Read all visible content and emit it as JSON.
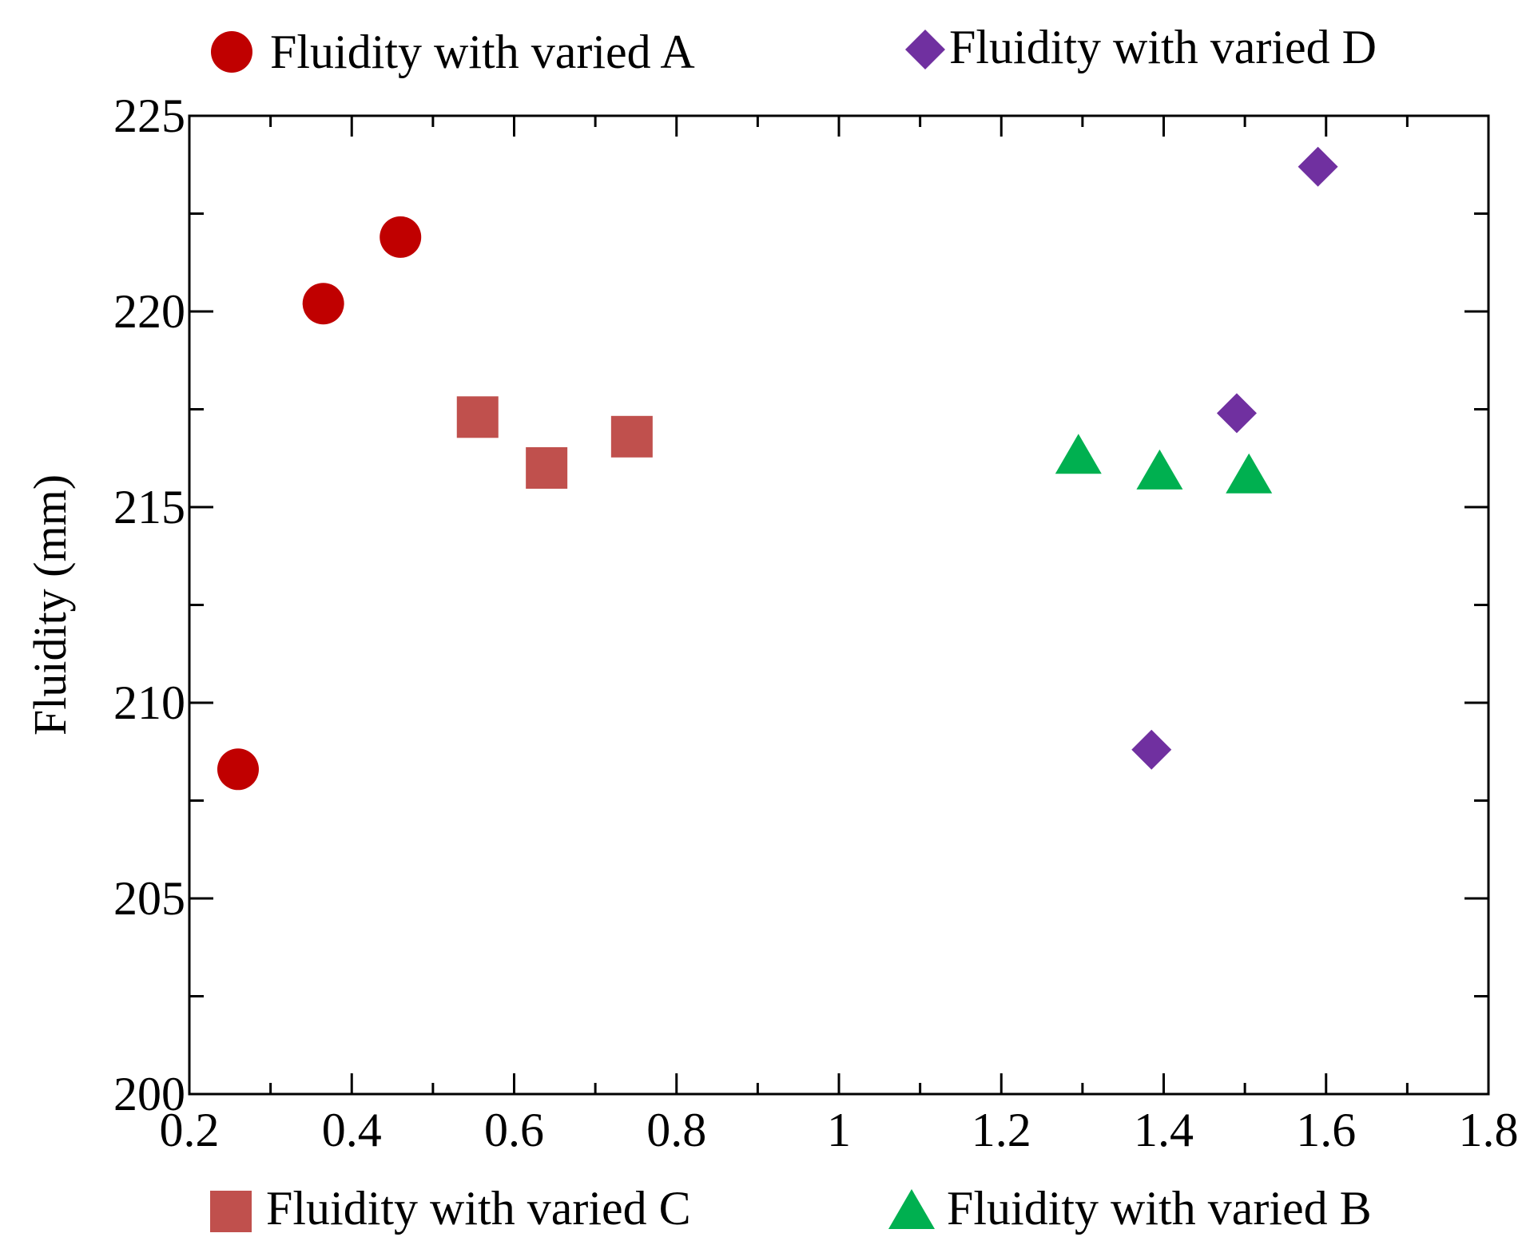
{
  "chart_data": {
    "type": "scatter",
    "title": "",
    "xlabel": "",
    "ylabel": "Fluidity (mm)",
    "xlim": [
      0.2,
      1.8
    ],
    "ylim": [
      200,
      225
    ],
    "x_major_ticks": [
      0.2,
      0.4,
      0.6,
      0.8,
      1,
      1.2,
      1.4,
      1.6,
      1.8
    ],
    "x_tick_labels": [
      "0.2",
      "0.4",
      "0.6",
      "0.8",
      "1",
      "1.2",
      "1.4",
      "1.6",
      "1.8"
    ],
    "x_minor_step": 0.1,
    "y_major_ticks": [
      200,
      205,
      210,
      215,
      220,
      225
    ],
    "y_tick_labels": [
      "200",
      "205",
      "210",
      "215",
      "220",
      "225"
    ],
    "y_minor_step": 2.5,
    "grid": false,
    "legend_placement": "outside top and bottom",
    "series": [
      {
        "key": "A",
        "name": "Fluidity with varied A",
        "marker": "circle",
        "color": "#c00000",
        "x": [
          0.26,
          0.365,
          0.46
        ],
        "y": [
          208.3,
          220.2,
          221.9
        ]
      },
      {
        "key": "C",
        "name": "Fluidity with varied C",
        "marker": "square",
        "color": "#c0504d",
        "x": [
          0.555,
          0.64,
          0.745
        ],
        "y": [
          217.3,
          216.0,
          216.8
        ]
      },
      {
        "key": "B",
        "name": "Fluidity with varied B",
        "marker": "triangle",
        "color": "#00b050",
        "x": [
          1.295,
          1.395,
          1.505
        ],
        "y": [
          216.3,
          215.9,
          215.8
        ]
      },
      {
        "key": "D",
        "name": "Fluidity with varied D",
        "marker": "diamond",
        "color": "#7030a0",
        "x": [
          1.385,
          1.49,
          1.59
        ],
        "y": [
          208.8,
          217.4,
          223.7
        ]
      }
    ]
  }
}
